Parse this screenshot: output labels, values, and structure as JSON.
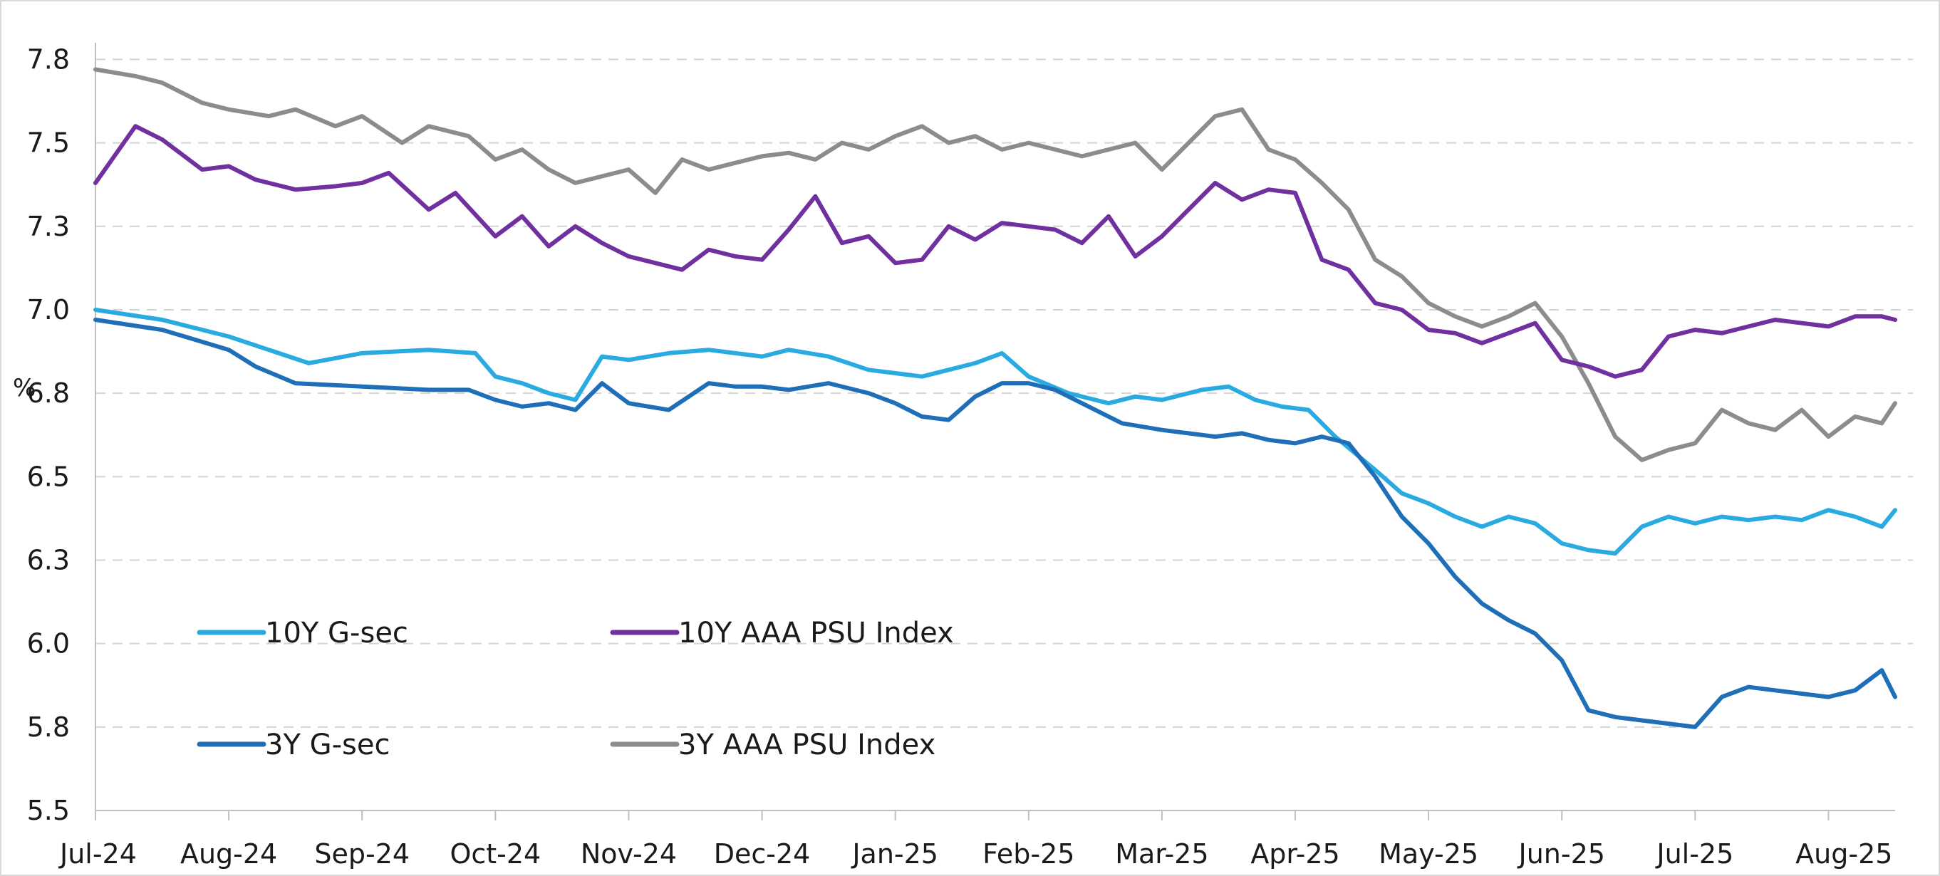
{
  "chart_data": {
    "type": "line",
    "ylabel": "%",
    "ylim": [
      5.5,
      7.8
    ],
    "yticks": [
      "5.5",
      "5.8",
      "6.0",
      "6.3",
      "6.5",
      "6.8",
      "7.0",
      "7.3",
      "7.5",
      "7.8"
    ],
    "ytick_values": [
      5.5,
      5.75,
      6.0,
      6.25,
      6.5,
      6.75,
      7.0,
      7.25,
      7.5,
      7.75
    ],
    "xticks": [
      "Jul-24",
      "Aug-24",
      "Sep-24",
      "Oct-24",
      "Nov-24",
      "Dec-24",
      "Jan-25",
      "Feb-25",
      "Mar-25",
      "Apr-25",
      "May-25",
      "Jun-25",
      "Jul-25",
      "Aug-25"
    ],
    "xlim": [
      0,
      13.5
    ],
    "grid": true,
    "legend_position": "lower-left",
    "series": [
      {
        "name": "10Y G-sec",
        "color": "#29abe2",
        "x": [
          0,
          0.5,
          1,
          1.3,
          1.6,
          2,
          2.5,
          2.85,
          3,
          3.2,
          3.4,
          3.6,
          3.8,
          4,
          4.3,
          4.6,
          4.8,
          5,
          5.2,
          5.5,
          5.8,
          6,
          6.2,
          6.4,
          6.6,
          6.8,
          7,
          7.3,
          7.6,
          7.8,
          8,
          8.1,
          8.3,
          8.5,
          8.7,
          8.9,
          9.1,
          9.3,
          9.6,
          9.8,
          10,
          10.2,
          10.4,
          10.6,
          10.8,
          11,
          11.2,
          11.4,
          11.6,
          11.8,
          12,
          12.2,
          12.4,
          12.6,
          12.8,
          13,
          13.2,
          13.4,
          13.5
        ],
        "y": [
          7.0,
          6.97,
          6.92,
          6.88,
          6.84,
          6.87,
          6.88,
          6.87,
          6.8,
          6.78,
          6.75,
          6.73,
          6.86,
          6.85,
          6.87,
          6.88,
          6.87,
          6.86,
          6.88,
          6.86,
          6.82,
          6.81,
          6.8,
          6.82,
          6.84,
          6.87,
          6.8,
          6.75,
          6.72,
          6.74,
          6.73,
          6.74,
          6.76,
          6.77,
          6.73,
          6.71,
          6.7,
          6.62,
          6.52,
          6.45,
          6.42,
          6.38,
          6.35,
          6.38,
          6.36,
          6.3,
          6.28,
          6.27,
          6.35,
          6.38,
          6.36,
          6.38,
          6.37,
          6.38,
          6.37,
          6.4,
          6.38,
          6.35,
          6.4
        ]
      },
      {
        "name": "3Y G-sec",
        "color": "#1f6fb8",
        "x": [
          0,
          0.5,
          1,
          1.2,
          1.5,
          2,
          2.5,
          2.8,
          3,
          3.2,
          3.4,
          3.6,
          3.8,
          4,
          4.3,
          4.6,
          4.8,
          5,
          5.2,
          5.5,
          5.8,
          6,
          6.2,
          6.4,
          6.6,
          6.8,
          7,
          7.2,
          7.5,
          7.7,
          8,
          8.2,
          8.4,
          8.6,
          8.8,
          9,
          9.2,
          9.4,
          9.6,
          9.8,
          10,
          10.2,
          10.4,
          10.6,
          10.8,
          11,
          11.2,
          11.4,
          11.6,
          11.8,
          12,
          12.2,
          12.4,
          12.6,
          12.8,
          13,
          13.2,
          13.4,
          13.5
        ],
        "y": [
          6.97,
          6.94,
          6.88,
          6.83,
          6.78,
          6.77,
          6.76,
          6.76,
          6.73,
          6.71,
          6.72,
          6.7,
          6.78,
          6.72,
          6.7,
          6.78,
          6.77,
          6.77,
          6.76,
          6.78,
          6.75,
          6.72,
          6.68,
          6.67,
          6.74,
          6.78,
          6.78,
          6.76,
          6.7,
          6.66,
          6.64,
          6.63,
          6.62,
          6.63,
          6.61,
          6.6,
          6.62,
          6.6,
          6.5,
          6.38,
          6.3,
          6.2,
          6.12,
          6.07,
          6.03,
          5.95,
          5.8,
          5.78,
          5.77,
          5.76,
          5.75,
          5.84,
          5.87,
          5.86,
          5.85,
          5.84,
          5.86,
          5.92,
          5.84
        ]
      },
      {
        "name": "10Y AAA PSU Index",
        "color": "#7030a0",
        "x": [
          0,
          0.3,
          0.5,
          0.8,
          1,
          1.2,
          1.5,
          1.8,
          2,
          2.2,
          2.5,
          2.7,
          3,
          3.2,
          3.4,
          3.6,
          3.8,
          4,
          4.2,
          4.4,
          4.6,
          4.8,
          5,
          5.2,
          5.4,
          5.6,
          5.8,
          6,
          6.2,
          6.4,
          6.6,
          6.8,
          7,
          7.2,
          7.4,
          7.6,
          7.8,
          8,
          8.2,
          8.4,
          8.6,
          8.8,
          9,
          9.2,
          9.4,
          9.6,
          9.8,
          10,
          10.2,
          10.4,
          10.6,
          10.8,
          11,
          11.2,
          11.4,
          11.6,
          11.8,
          12,
          12.2,
          12.4,
          12.6,
          12.8,
          13,
          13.2,
          13.4,
          13.5
        ],
        "y": [
          7.38,
          7.55,
          7.51,
          7.42,
          7.43,
          7.39,
          7.36,
          7.37,
          7.38,
          7.41,
          7.3,
          7.35,
          7.22,
          7.28,
          7.19,
          7.25,
          7.2,
          7.16,
          7.14,
          7.12,
          7.18,
          7.16,
          7.15,
          7.24,
          7.34,
          7.2,
          7.22,
          7.14,
          7.15,
          7.25,
          7.21,
          7.26,
          7.25,
          7.24,
          7.2,
          7.28,
          7.16,
          7.22,
          7.3,
          7.38,
          7.33,
          7.36,
          7.35,
          7.15,
          7.12,
          7.02,
          7.0,
          6.94,
          6.93,
          6.9,
          6.93,
          6.96,
          6.85,
          6.83,
          6.8,
          6.82,
          6.92,
          6.94,
          6.93,
          6.95,
          6.97,
          6.96,
          6.95,
          6.98,
          6.98,
          6.97
        ]
      },
      {
        "name": "3Y AAA PSU Index",
        "color": "#8c8c8c",
        "x": [
          0,
          0.3,
          0.5,
          0.8,
          1,
          1.3,
          1.5,
          1.8,
          2,
          2.3,
          2.5,
          2.8,
          3,
          3.2,
          3.4,
          3.6,
          3.8,
          4,
          4.2,
          4.4,
          4.6,
          4.8,
          5,
          5.2,
          5.4,
          5.6,
          5.8,
          6,
          6.2,
          6.4,
          6.6,
          6.8,
          7,
          7.2,
          7.4,
          7.6,
          7.8,
          8,
          8.2,
          8.4,
          8.6,
          8.8,
          9,
          9.2,
          9.4,
          9.6,
          9.8,
          10,
          10.2,
          10.4,
          10.6,
          10.8,
          11,
          11.2,
          11.4,
          11.6,
          11.8,
          12,
          12.2,
          12.4,
          12.6,
          12.8,
          13,
          13.2,
          13.4,
          13.5
        ],
        "y": [
          7.72,
          7.7,
          7.68,
          7.62,
          7.6,
          7.58,
          7.6,
          7.55,
          7.58,
          7.5,
          7.55,
          7.52,
          7.45,
          7.48,
          7.42,
          7.38,
          7.4,
          7.42,
          7.35,
          7.45,
          7.42,
          7.44,
          7.46,
          7.47,
          7.45,
          7.5,
          7.48,
          7.52,
          7.55,
          7.5,
          7.52,
          7.48,
          7.5,
          7.48,
          7.46,
          7.48,
          7.5,
          7.42,
          7.5,
          7.58,
          7.6,
          7.48,
          7.45,
          7.38,
          7.3,
          7.15,
          7.1,
          7.02,
          6.98,
          6.95,
          6.98,
          7.02,
          6.92,
          6.78,
          6.62,
          6.55,
          6.58,
          6.6,
          6.7,
          6.66,
          6.64,
          6.7,
          6.62,
          6.68,
          6.66,
          6.72
        ]
      }
    ]
  }
}
